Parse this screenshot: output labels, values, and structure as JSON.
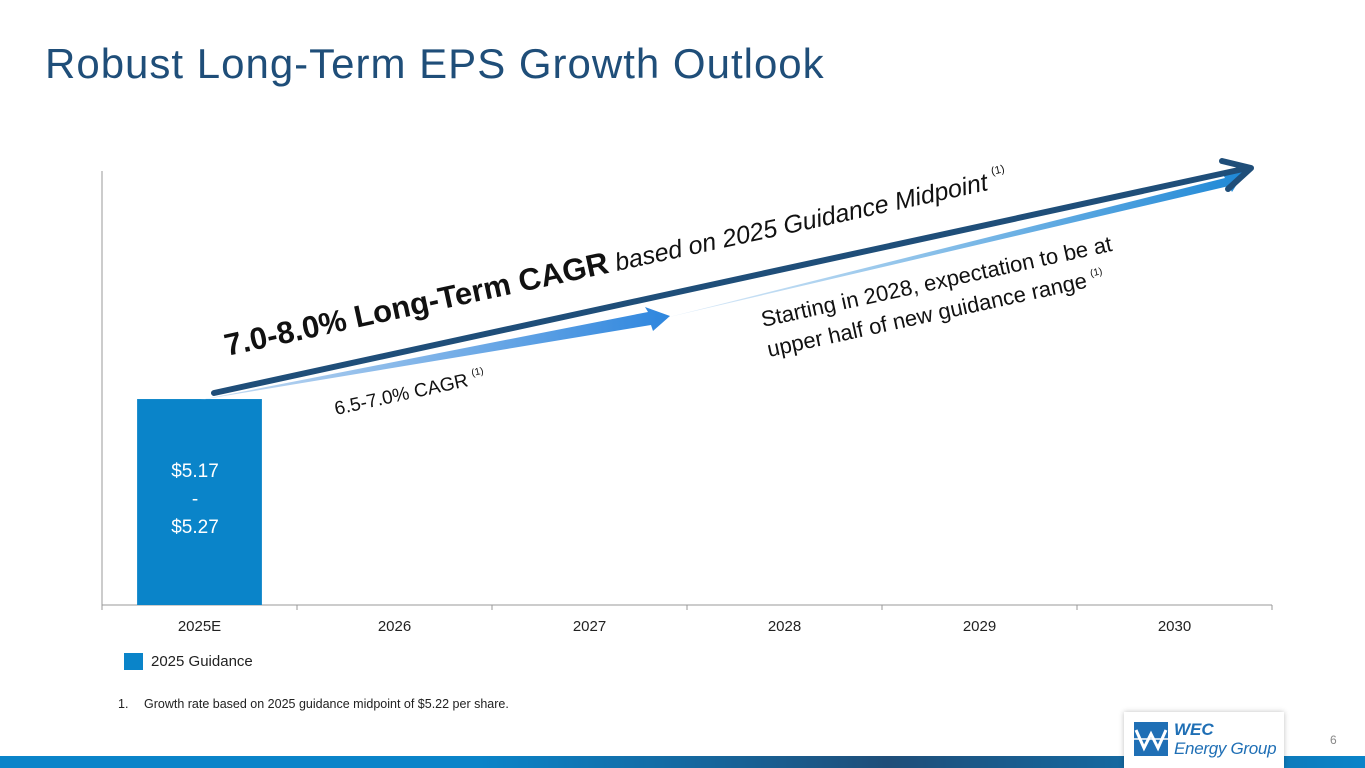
{
  "title": "Robust Long-Term EPS Growth Outlook",
  "colors": {
    "bar": "#0a84c9",
    "title": "#1f4e79",
    "arrow_dark": "#1f4e79",
    "arrow_light": "#2e86de"
  },
  "chart_data": {
    "type": "bar",
    "categories": [
      "2025E",
      "2026",
      "2027",
      "2028",
      "2029",
      "2030"
    ],
    "series": [
      {
        "name": "2025 Guidance",
        "values": [
          5.22,
          null,
          null,
          null,
          null,
          null
        ],
        "low": 5.17,
        "high": 5.27
      }
    ],
    "ylim": [
      0,
      11
    ],
    "grid": false,
    "bar_label": {
      "line1": "$5.17",
      "line2": "-",
      "line3": "$5.27"
    },
    "legend_position": "bottom-left",
    "annotations": {
      "long_term_bold": "7.0-8.0% Long-Term CAGR",
      "long_term_rest": " based on 2025 Guidance Midpoint",
      "long_term_note": "(1)",
      "short_term": "6.5-7.0% CAGR",
      "short_term_note": "(1)",
      "upper_line1": "Starting in 2028, expectation to be at",
      "upper_line2": "upper half of new guidance range",
      "upper_note": "(1)"
    }
  },
  "legend": {
    "label": "2025 Guidance"
  },
  "footnote": {
    "number": "1.",
    "text": "Growth rate based on 2025 guidance midpoint of $5.22 per share."
  },
  "logo": {
    "line1": "WEC",
    "line2": "Energy Group"
  },
  "page_number": "6"
}
